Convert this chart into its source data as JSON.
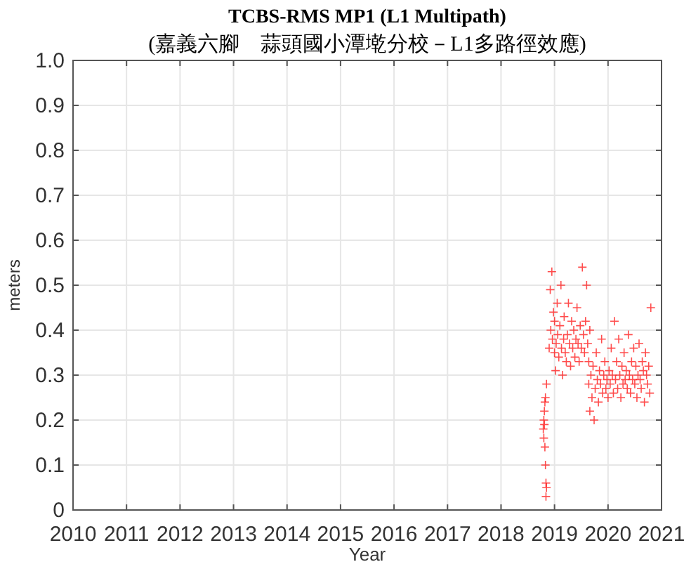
{
  "chart_data": {
    "type": "scatter",
    "title": "TCBS-RMS MP1 (L1 Multipath)",
    "subtitle": "(嘉義六腳　蒜頭國小潭墘分校－L1多路徑效應)",
    "xlabel": "Year",
    "ylabel": "meters",
    "xlim": [
      2010,
      2021
    ],
    "xticks": [
      2010,
      2011,
      2012,
      2013,
      2014,
      2015,
      2016,
      2017,
      2018,
      2019,
      2020,
      2021
    ],
    "ylim": [
      0,
      1
    ],
    "yticks": [
      0,
      {
        "value": 0.1,
        "label": "0.1"
      },
      {
        "value": 0.2,
        "label": "0.2"
      },
      {
        "value": 0.3,
        "label": "0.3"
      },
      {
        "value": 0.4,
        "label": "0.4"
      },
      {
        "value": 0.5,
        "label": "0.5"
      },
      {
        "value": 0.6,
        "label": "0.6"
      },
      {
        "value": 0.7,
        "label": "0.7"
      },
      {
        "value": 0.8,
        "label": "0.8"
      },
      {
        "value": 0.9,
        "label": "0.9"
      },
      {
        "value": 1,
        "label": "1.0"
      }
    ],
    "grid": true,
    "marker": "cross",
    "series": [
      {
        "color": "#ff0000",
        "x": [
          2018.79,
          2018.8,
          2018.8,
          2018.81,
          2018.81,
          2018.82,
          2018.82,
          2018.83,
          2018.84,
          2018.84,
          2018.85,
          2018.83,
          2018.85,
          2018.9,
          2018.92,
          2018.93,
          2018.95,
          2018.96,
          2018.98,
          2019.0,
          2019.0,
          2019.02,
          2019.03,
          2019.05,
          2019.06,
          2019.08,
          2019.1,
          2019.12,
          2019.13,
          2019.15,
          2019.17,
          2019.18,
          2019.2,
          2019.22,
          2019.24,
          2019.26,
          2019.28,
          2019.3,
          2019.32,
          2019.34,
          2019.36,
          2019.38,
          2019.4,
          2019.42,
          2019.44,
          2019.46,
          2019.48,
          2019.5,
          2019.52,
          2019.54,
          2019.56,
          2019.58,
          2019.6,
          2019.62,
          2019.64,
          2019.66,
          2019.64,
          2019.66,
          2019.68,
          2019.7,
          2019.72,
          2019.74,
          2019.76,
          2019.78,
          2019.8,
          2019.82,
          2019.84,
          2019.86,
          2019.88,
          2019.9,
          2019.92,
          2019.94,
          2019.96,
          2019.98,
          2020.0,
          2020.02,
          2020.04,
          2020.06,
          2020.08,
          2020.1,
          2020.12,
          2020.14,
          2020.16,
          2020.18,
          2020.2,
          2020.22,
          2020.24,
          2020.26,
          2020.28,
          2020.3,
          2020.32,
          2020.34,
          2020.36,
          2020.38,
          2020.4,
          2020.42,
          2020.44,
          2020.46,
          2020.48,
          2020.5,
          2020.52,
          2020.54,
          2020.56,
          2020.58,
          2020.6,
          2020.62,
          2020.64,
          2020.66,
          2020.68,
          2020.7,
          2020.72,
          2020.74,
          2020.76,
          2020.78,
          2020.8
        ],
        "values": [
          0.18,
          0.2,
          0.16,
          0.19,
          0.22,
          0.24,
          0.14,
          0.1,
          0.06,
          0.03,
          0.05,
          0.25,
          0.28,
          0.36,
          0.49,
          0.4,
          0.53,
          0.38,
          0.44,
          0.35,
          0.42,
          0.31,
          0.37,
          0.46,
          0.39,
          0.34,
          0.41,
          0.5,
          0.36,
          0.3,
          0.38,
          0.43,
          0.35,
          0.33,
          0.39,
          0.46,
          0.37,
          0.32,
          0.42,
          0.36,
          0.4,
          0.34,
          0.38,
          0.45,
          0.37,
          0.33,
          0.41,
          0.36,
          0.54,
          0.39,
          0.35,
          0.42,
          0.5,
          0.37,
          0.33,
          0.4,
          0.28,
          0.22,
          0.3,
          0.25,
          0.32,
          0.2,
          0.27,
          0.35,
          0.29,
          0.24,
          0.31,
          0.28,
          0.38,
          0.26,
          0.3,
          0.33,
          0.27,
          0.29,
          0.25,
          0.31,
          0.28,
          0.36,
          0.3,
          0.26,
          0.42,
          0.29,
          0.33,
          0.27,
          0.38,
          0.3,
          0.25,
          0.32,
          0.28,
          0.35,
          0.29,
          0.31,
          0.27,
          0.39,
          0.3,
          0.26,
          0.33,
          0.29,
          0.36,
          0.28,
          0.32,
          0.25,
          0.3,
          0.37,
          0.29,
          0.27,
          0.33,
          0.31,
          0.24,
          0.35,
          0.3,
          0.28,
          0.32,
          0.26,
          0.45
        ]
      }
    ]
  }
}
